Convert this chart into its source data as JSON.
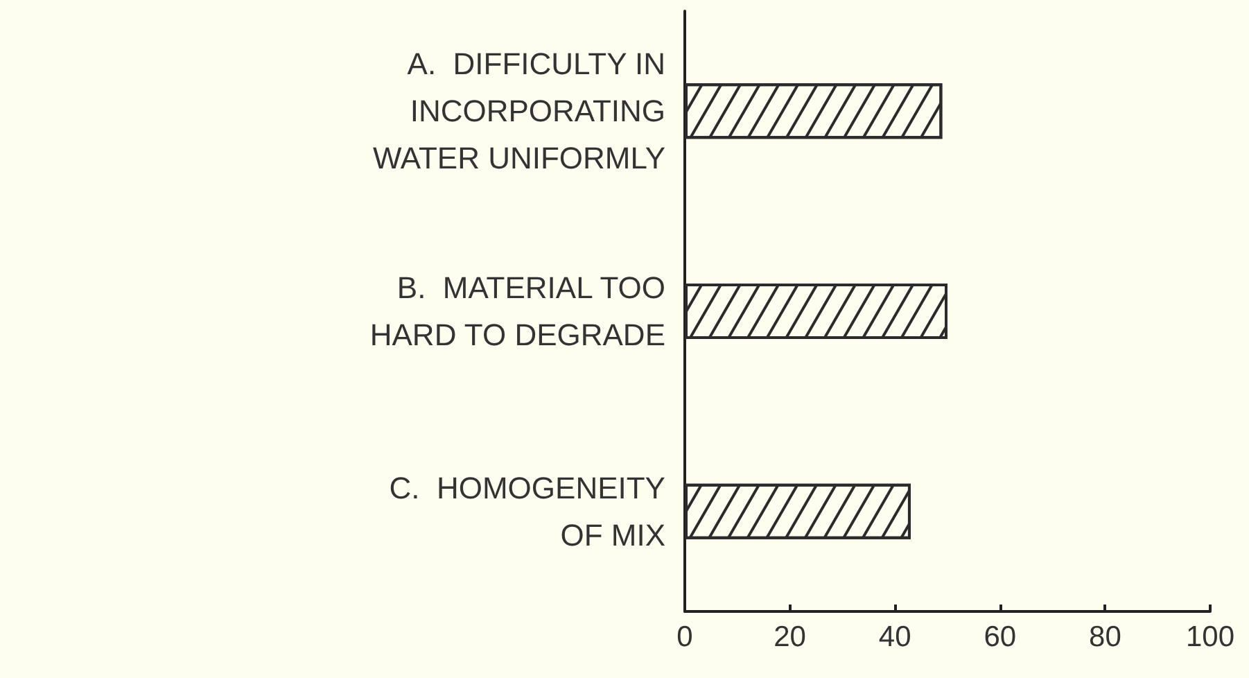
{
  "chart_data": {
    "type": "bar",
    "orientation": "horizontal",
    "categories": [
      "A.  DIFFICULTY IN\nINCORPORATING\nWATER UNIFORMLY",
      "B.  MATERIAL TOO\nHARD TO DEGRADE",
      "C.  HOMOGENEITY\nOF MIX"
    ],
    "values": [
      49,
      50,
      43
    ],
    "color": "#2b2b2b",
    "xlim": [
      0,
      100
    ],
    "xticks": [
      0,
      20,
      40,
      60,
      80,
      100
    ],
    "grid": false
  }
}
